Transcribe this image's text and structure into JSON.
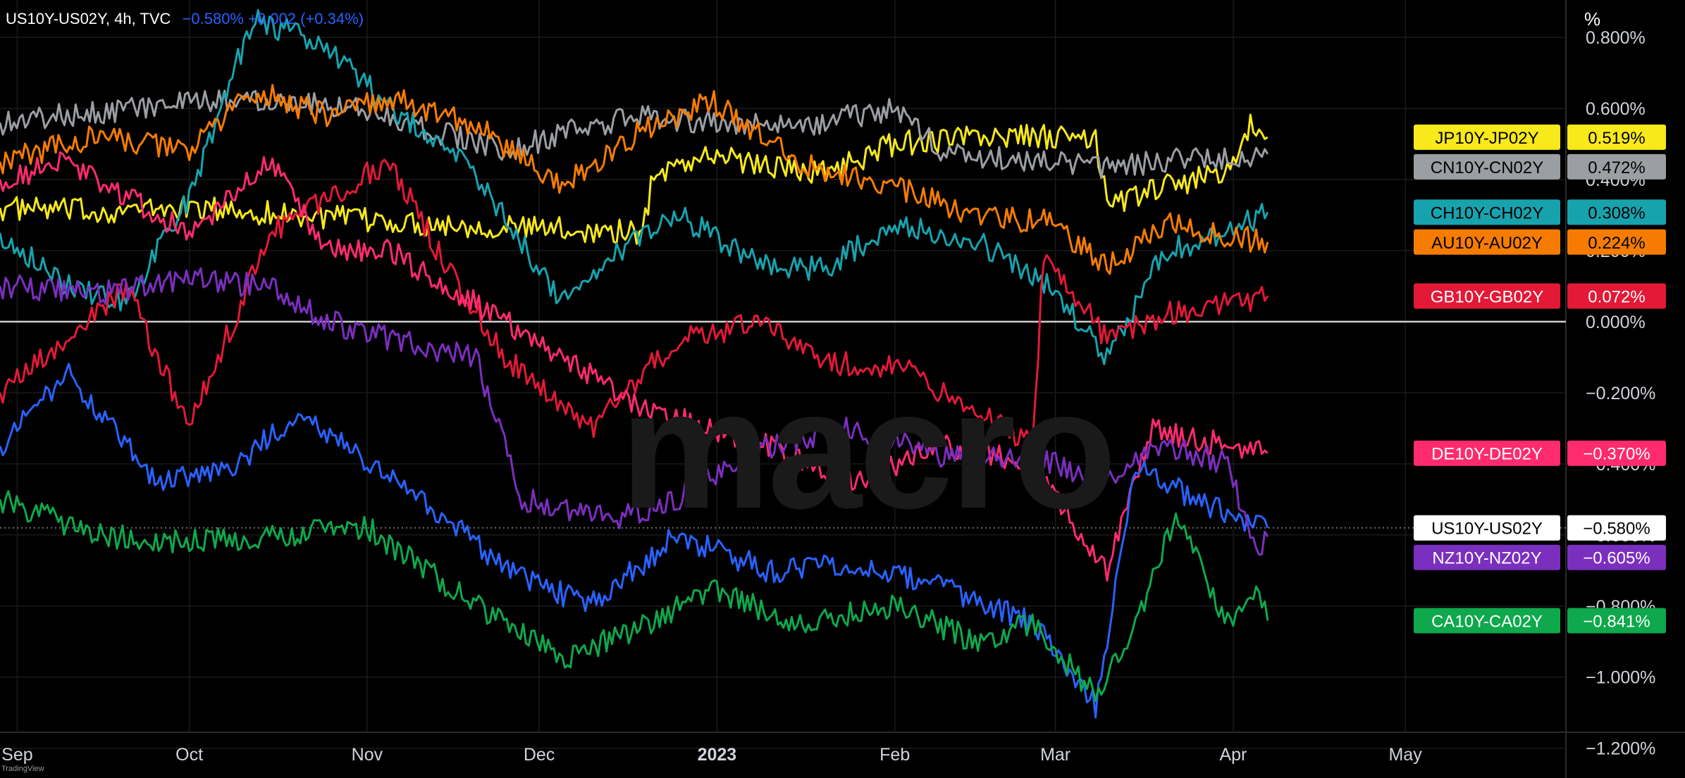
{
  "header": {
    "symbol": "US10Y-US02Y, 4h, TVC",
    "values": "−0.580%  +0.002 (+0.34%)"
  },
  "unit_label": "%",
  "logo_text": "TradingView",
  "watermark": "macro",
  "chart_data": {
    "type": "line",
    "title": "",
    "xlabel": "",
    "ylabel": "%",
    "ylim": [
      -1.2,
      0.9
    ],
    "grid": true,
    "legend": "right-side value labels",
    "x_range": [
      "2022-08-29",
      "2023-05-29"
    ],
    "x_ticks": [
      {
        "label": "Sep",
        "date": "2022-09-01"
      },
      {
        "label": "Oct",
        "date": "2022-10-01"
      },
      {
        "label": "Nov",
        "date": "2022-11-01"
      },
      {
        "label": "Dec",
        "date": "2022-12-01"
      },
      {
        "label": "2023",
        "date": "2023-01-01"
      },
      {
        "label": "Feb",
        "date": "2023-02-01"
      },
      {
        "label": "Mar",
        "date": "2023-03-01"
      },
      {
        "label": "Apr",
        "date": "2023-04-01"
      },
      {
        "label": "May",
        "date": "2023-05-01"
      }
    ],
    "y_ticks": [
      {
        "label": "0.800%",
        "value": 0.8
      },
      {
        "label": "0.600%",
        "value": 0.6
      },
      {
        "label": "0.400%",
        "value": 0.4
      },
      {
        "label": "0.200%",
        "value": 0.2
      },
      {
        "label": "0.000%",
        "value": 0.0
      },
      {
        "label": "−0.200%",
        "value": -0.2
      },
      {
        "label": "−0.400%",
        "value": -0.4
      },
      {
        "label": "−0.600%",
        "value": -0.6
      },
      {
        "label": "−0.800%",
        "value": -0.8
      },
      {
        "label": "−1.000%",
        "value": -1.0
      },
      {
        "label": "−1.200%",
        "value": -1.2
      }
    ],
    "zero_line": 0.0,
    "series": [
      {
        "name": "JP10Y-JP02Y",
        "color": "#f7e91a",
        "last": "0.519%",
        "last_value": 0.519,
        "text_color": "#000000",
        "points": [
          [
            "2022-08-29",
            0.32
          ],
          [
            "2022-09-15",
            0.31
          ],
          [
            "2022-10-01",
            0.32
          ],
          [
            "2022-10-20",
            0.3
          ],
          [
            "2022-11-05",
            0.28
          ],
          [
            "2022-11-20",
            0.27
          ],
          [
            "2022-12-05",
            0.26
          ],
          [
            "2022-12-19",
            0.25
          ],
          [
            "2022-12-21",
            0.42
          ],
          [
            "2022-12-31",
            0.47
          ],
          [
            "2023-01-10",
            0.44
          ],
          [
            "2023-01-20",
            0.42
          ],
          [
            "2023-02-01",
            0.5
          ],
          [
            "2023-02-15",
            0.52
          ],
          [
            "2023-02-28",
            0.52
          ],
          [
            "2023-03-08",
            0.51
          ],
          [
            "2023-03-10",
            0.33
          ],
          [
            "2023-03-20",
            0.38
          ],
          [
            "2023-03-31",
            0.42
          ],
          [
            "2023-04-04",
            0.55
          ],
          [
            "2023-04-07",
            0.519
          ]
        ]
      },
      {
        "name": "CN10Y-CN02Y",
        "color": "#9b9ea3",
        "last": "0.472%",
        "last_value": 0.472,
        "text_color": "#000000",
        "points": [
          [
            "2022-08-29",
            0.56
          ],
          [
            "2022-09-20",
            0.6
          ],
          [
            "2022-10-15",
            0.63
          ],
          [
            "2022-11-01",
            0.6
          ],
          [
            "2022-11-10",
            0.55
          ],
          [
            "2022-11-25",
            0.48
          ],
          [
            "2022-12-10",
            0.55
          ],
          [
            "2022-12-20",
            0.58
          ],
          [
            "2022-12-31",
            0.56
          ],
          [
            "2023-01-15",
            0.55
          ],
          [
            "2023-02-01",
            0.6
          ],
          [
            "2023-02-10",
            0.47
          ],
          [
            "2023-02-25",
            0.45
          ],
          [
            "2023-03-10",
            0.43
          ],
          [
            "2023-03-25",
            0.46
          ],
          [
            "2023-04-07",
            0.472
          ]
        ]
      },
      {
        "name": "CH10Y-CH02Y",
        "color": "#17a3ae",
        "last": "0.308%",
        "last_value": 0.308,
        "text_color": "#000000",
        "points": [
          [
            "2022-08-29",
            0.25
          ],
          [
            "2022-09-10",
            0.1
          ],
          [
            "2022-09-20",
            0.05
          ],
          [
            "2022-10-01",
            0.35
          ],
          [
            "2022-10-12",
            0.85
          ],
          [
            "2022-10-25",
            0.78
          ],
          [
            "2022-11-05",
            0.6
          ],
          [
            "2022-11-15",
            0.5
          ],
          [
            "2022-11-25",
            0.3
          ],
          [
            "2022-12-05",
            0.05
          ],
          [
            "2022-12-15",
            0.2
          ],
          [
            "2022-12-25",
            0.3
          ],
          [
            "2023-01-10",
            0.15
          ],
          [
            "2023-01-20",
            0.15
          ],
          [
            "2023-02-01",
            0.28
          ],
          [
            "2023-02-15",
            0.23
          ],
          [
            "2023-02-28",
            0.1
          ],
          [
            "2023-03-10",
            -0.1
          ],
          [
            "2023-03-20",
            0.2
          ],
          [
            "2023-03-31",
            0.25
          ],
          [
            "2023-04-07",
            0.308
          ]
        ]
      },
      {
        "name": "AU10Y-AU02Y",
        "color": "#f57c00",
        "last": "0.224%",
        "last_value": 0.224,
        "text_color": "#000000",
        "points": [
          [
            "2022-08-29",
            0.45
          ],
          [
            "2022-09-15",
            0.52
          ],
          [
            "2022-10-01",
            0.48
          ],
          [
            "2022-10-12",
            0.65
          ],
          [
            "2022-10-25",
            0.58
          ],
          [
            "2022-11-05",
            0.63
          ],
          [
            "2022-11-20",
            0.55
          ],
          [
            "2022-12-05",
            0.38
          ],
          [
            "2022-12-20",
            0.55
          ],
          [
            "2022-12-31",
            0.62
          ],
          [
            "2023-01-15",
            0.45
          ],
          [
            "2023-02-01",
            0.38
          ],
          [
            "2023-02-15",
            0.3
          ],
          [
            "2023-02-28",
            0.28
          ],
          [
            "2023-03-10",
            0.15
          ],
          [
            "2023-03-20",
            0.28
          ],
          [
            "2023-03-31",
            0.24
          ],
          [
            "2023-04-07",
            0.224
          ]
        ]
      },
      {
        "name": "GB10Y-GB02Y",
        "color": "#e31937",
        "last": "0.072%",
        "last_value": 0.072,
        "text_color": "#ffffff",
        "points": [
          [
            "2022-08-29",
            -0.2
          ],
          [
            "2022-09-10",
            -0.05
          ],
          [
            "2022-09-20",
            0.1
          ],
          [
            "2022-10-01",
            -0.3
          ],
          [
            "2022-10-15",
            0.25
          ],
          [
            "2022-10-25",
            0.35
          ],
          [
            "2022-11-05",
            0.45
          ],
          [
            "2022-11-15",
            0.15
          ],
          [
            "2022-11-25",
            -0.1
          ],
          [
            "2022-12-10",
            -0.3
          ],
          [
            "2022-12-25",
            -0.05
          ],
          [
            "2023-01-10",
            0.0
          ],
          [
            "2023-01-20",
            -0.12
          ],
          [
            "2023-02-01",
            -0.12
          ],
          [
            "2023-02-15",
            -0.25
          ],
          [
            "2023-02-25",
            -0.35
          ],
          [
            "2023-02-27",
            0.2
          ],
          [
            "2023-03-10",
            -0.05
          ],
          [
            "2023-03-20",
            0.02
          ],
          [
            "2023-03-31",
            0.05
          ],
          [
            "2023-04-07",
            0.072
          ]
        ]
      },
      {
        "name": "DE10Y-DE02Y",
        "color": "#ff2b6e",
        "last": "−0.370%",
        "last_value": -0.37,
        "text_color": "#ffffff",
        "points": [
          [
            "2022-08-29",
            0.4
          ],
          [
            "2022-09-10",
            0.45
          ],
          [
            "2022-09-20",
            0.35
          ],
          [
            "2022-10-01",
            0.25
          ],
          [
            "2022-10-15",
            0.45
          ],
          [
            "2022-10-25",
            0.2
          ],
          [
            "2022-11-05",
            0.2
          ],
          [
            "2022-11-20",
            0.05
          ],
          [
            "2022-12-05",
            -0.1
          ],
          [
            "2022-12-20",
            -0.25
          ],
          [
            "2023-01-10",
            -0.35
          ],
          [
            "2023-01-25",
            -0.45
          ],
          [
            "2023-02-10",
            -0.35
          ],
          [
            "2023-02-25",
            -0.4
          ],
          [
            "2023-03-10",
            -0.7
          ],
          [
            "2023-03-18",
            -0.3
          ],
          [
            "2023-03-31",
            -0.35
          ],
          [
            "2023-04-07",
            -0.37
          ]
        ]
      },
      {
        "name": "US10Y-US02Y",
        "color": "#ffffff",
        "last": "−0.580%",
        "last_value": -0.58,
        "text_color": "#000000",
        "points": [
          [
            "2022-08-29",
            -0.35
          ],
          [
            "2022-09-10",
            -0.15
          ],
          [
            "2022-09-25",
            -0.45
          ],
          [
            "2022-10-10",
            -0.4
          ],
          [
            "2022-10-20",
            -0.25
          ],
          [
            "2022-11-01",
            -0.4
          ],
          [
            "2022-11-15",
            -0.55
          ],
          [
            "2022-11-25",
            -0.7
          ],
          [
            "2022-12-10",
            -0.8
          ],
          [
            "2022-12-25",
            -0.6
          ],
          [
            "2023-01-10",
            -0.7
          ],
          [
            "2023-01-25",
            -0.68
          ],
          [
            "2023-02-10",
            -0.75
          ],
          [
            "2023-02-25",
            -0.85
          ],
          [
            "2023-03-08",
            -1.08
          ],
          [
            "2023-03-15",
            -0.4
          ],
          [
            "2023-03-25",
            -0.5
          ],
          [
            "2023-04-07",
            -0.58
          ]
        ]
      },
      {
        "name": "NZ10Y-NZ02Y",
        "color": "#7b2fbe",
        "last": "−0.605%",
        "last_value": -0.605,
        "text_color": "#ffffff",
        "points": [
          [
            "2022-08-29",
            0.1
          ],
          [
            "2022-09-15",
            0.08
          ],
          [
            "2022-10-01",
            0.12
          ],
          [
            "2022-10-15",
            0.1
          ],
          [
            "2022-10-25",
            0.0
          ],
          [
            "2022-11-05",
            -0.05
          ],
          [
            "2022-11-20",
            -0.1
          ],
          [
            "2022-11-28",
            -0.5
          ],
          [
            "2022-12-15",
            -0.55
          ],
          [
            "2022-12-25",
            -0.5
          ],
          [
            "2023-01-10",
            -0.35
          ],
          [
            "2023-01-25",
            -0.3
          ],
          [
            "2023-02-10",
            -0.38
          ],
          [
            "2023-02-25",
            -0.38
          ],
          [
            "2023-03-10",
            -0.45
          ],
          [
            "2023-03-20",
            -0.35
          ],
          [
            "2023-03-31",
            -0.4
          ],
          [
            "2023-04-05",
            -0.65
          ],
          [
            "2023-04-07",
            -0.605
          ]
        ]
      },
      {
        "name": "CA10Y-CA02Y",
        "color": "#0fa84c",
        "last": "−0.841%",
        "last_value": -0.841,
        "text_color": "#ffffff",
        "points": [
          [
            "2022-08-29",
            -0.5
          ],
          [
            "2022-09-15",
            -0.6
          ],
          [
            "2022-10-01",
            -0.62
          ],
          [
            "2022-10-15",
            -0.6
          ],
          [
            "2022-11-01",
            -0.58
          ],
          [
            "2022-11-20",
            -0.8
          ],
          [
            "2022-12-05",
            -0.95
          ],
          [
            "2022-12-20",
            -0.85
          ],
          [
            "2022-12-31",
            -0.75
          ],
          [
            "2023-01-15",
            -0.85
          ],
          [
            "2023-02-01",
            -0.8
          ],
          [
            "2023-02-15",
            -0.9
          ],
          [
            "2023-02-25",
            -0.85
          ],
          [
            "2023-03-08",
            -1.05
          ],
          [
            "2023-03-15",
            -0.85
          ],
          [
            "2023-03-22",
            -0.55
          ],
          [
            "2023-03-31",
            -0.85
          ],
          [
            "2023-04-05",
            -0.75
          ],
          [
            "2023-04-07",
            -0.841
          ]
        ]
      }
    ]
  }
}
